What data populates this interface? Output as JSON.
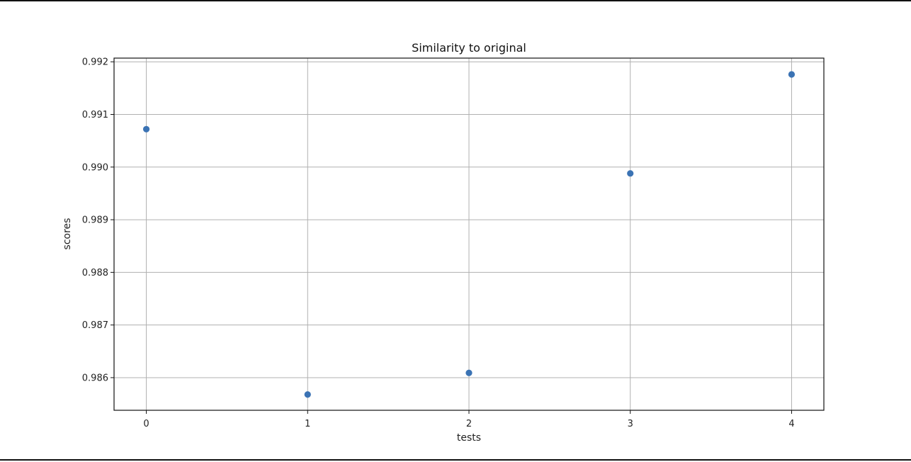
{
  "chart_data": {
    "type": "scatter",
    "title": "Similarity to original",
    "xlabel": "tests",
    "ylabel": "scores",
    "x": [
      0,
      1,
      2,
      3,
      4
    ],
    "y": [
      0.99072,
      0.98568,
      0.98609,
      0.98988,
      0.99176
    ],
    "xlim": [
      -0.2,
      4.2
    ],
    "ylim": [
      0.98538,
      0.99207
    ],
    "xticks": [
      0,
      1,
      2,
      3,
      4
    ],
    "xtick_labels": [
      "0",
      "1",
      "2",
      "3",
      "4"
    ],
    "yticks": [
      0.986,
      0.987,
      0.988,
      0.989,
      0.99,
      0.991,
      0.992
    ],
    "ytick_labels": [
      "0.986",
      "0.987",
      "0.988",
      "0.989",
      "0.990",
      "0.991",
      "0.992"
    ],
    "grid": true,
    "marker_color": "#3b73b4",
    "grid_color": "#b0b0b0"
  }
}
